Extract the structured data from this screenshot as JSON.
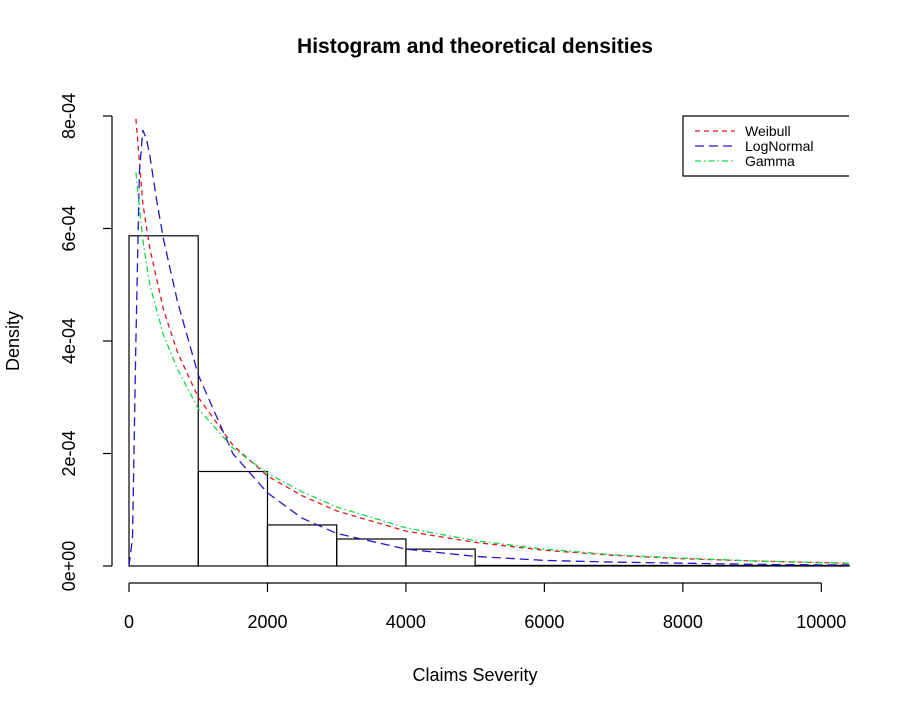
{
  "chart_data": {
    "type": "histogram",
    "title": "Histogram and theoretical densities",
    "xlabel": "Claims Severity",
    "ylabel": "Density",
    "xlim": [
      0,
      10400
    ],
    "ylim": [
      0,
      0.0008
    ],
    "x_ticks": [
      0,
      2000,
      4000,
      6000,
      8000,
      10000
    ],
    "x_tick_labels": [
      "0",
      "2000",
      "4000",
      "6000",
      "8000",
      "10000"
    ],
    "y_ticks": [
      0,
      0.0002,
      0.0004,
      0.0006,
      0.0008
    ],
    "y_tick_labels": [
      "0e+00",
      "2e-04",
      "4e-04",
      "6e-04",
      "8e-04"
    ],
    "bins": [
      {
        "from": 0,
        "to": 1000,
        "density": 0.000587
      },
      {
        "from": 1000,
        "to": 2000,
        "density": 0.000168
      },
      {
        "from": 2000,
        "to": 3000,
        "density": 7.3e-05
      },
      {
        "from": 3000,
        "to": 4000,
        "density": 4.8e-05
      },
      {
        "from": 4000,
        "to": 5000,
        "density": 3e-05
      },
      {
        "from": 5000,
        "to": 6000,
        "density": 1e-06
      },
      {
        "from": 6000,
        "to": 7000,
        "density": 1e-06
      },
      {
        "from": 7000,
        "to": 8000,
        "density": 1e-06
      },
      {
        "from": 8000,
        "to": 9000,
        "density": 1e-06
      },
      {
        "from": 9000,
        "to": 10000,
        "density": 1e-06
      },
      {
        "from": 10000,
        "to": 11000,
        "density": 1e-06
      }
    ],
    "series": [
      {
        "name": "Weibull",
        "color": "#e5161b",
        "dash": "5,4",
        "x": [
          100,
          200,
          300,
          500,
          700,
          1000,
          1500,
          2000,
          2500,
          3000,
          4000,
          5000,
          6000,
          7000,
          8000,
          9000,
          10000,
          10400
        ],
        "y": [
          0.000795,
          0.000645,
          0.000565,
          0.000455,
          0.00038,
          0.0003,
          0.000215,
          0.00016,
          0.000125,
          9.8e-05,
          6.2e-05,
          4.2e-05,
          2.8e-05,
          1.9e-05,
          1.3e-05,
          9e-06,
          6e-06,
          5e-06
        ]
      },
      {
        "name": "LogNormal",
        "color": "#2417c9",
        "dash": "9,5",
        "x": [
          0,
          50,
          100,
          150,
          200,
          250,
          300,
          400,
          500,
          700,
          1000,
          1500,
          2000,
          2500,
          3000,
          4000,
          5000,
          6000,
          7000,
          8000,
          9000,
          10000,
          10400
        ],
        "y": [
          0,
          5e-05,
          0.0004,
          0.0007,
          0.000775,
          0.00076,
          0.00073,
          0.00065,
          0.00058,
          0.00047,
          0.00034,
          0.0002,
          0.00013,
          8.5e-05,
          5.8e-05,
          3e-05,
          1.7e-05,
          1e-05,
          7e-06,
          5e-06,
          3e-06,
          2e-06,
          2e-06
        ]
      },
      {
        "name": "Gamma",
        "color": "#16d94a",
        "dash": "6,3,1.5,3",
        "x": [
          100,
          200,
          300,
          500,
          700,
          1000,
          1500,
          2000,
          2500,
          3000,
          4000,
          5000,
          6000,
          7000,
          8000,
          9000,
          10000,
          10400
        ],
        "y": [
          0.0007,
          0.00058,
          0.0005,
          0.00041,
          0.00035,
          0.00028,
          0.00021,
          0.000165,
          0.000132,
          0.000105,
          6.8e-05,
          4.5e-05,
          3e-05,
          2e-05,
          1.4e-05,
          9e-06,
          6e-06,
          5e-06
        ]
      }
    ],
    "legend": {
      "position": "top-right",
      "entries": [
        "Weibull",
        "LogNormal",
        "Gamma"
      ]
    },
    "grid": false
  }
}
